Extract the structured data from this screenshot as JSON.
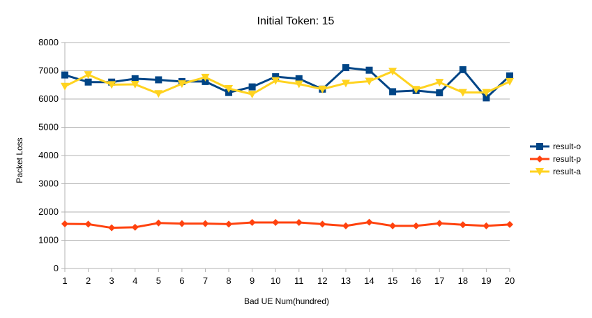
{
  "chart_data": {
    "type": "line",
    "title": "Initial Token: 15",
    "xlabel": "Bad UE Num(hundred)",
    "ylabel": "Packet Loss",
    "categories": [
      "1",
      "2",
      "3",
      "4",
      "5",
      "6",
      "7",
      "8",
      "9",
      "10",
      "11",
      "12",
      "13",
      "14",
      "15",
      "16",
      "17",
      "18",
      "19",
      "20"
    ],
    "ylim": [
      0,
      8000
    ],
    "yticks": [
      "0",
      "1000",
      "2000",
      "3000",
      "4000",
      "5000",
      "6000",
      "7000",
      "8000"
    ],
    "grid": true,
    "legend_position": "right",
    "series": [
      {
        "name": "result-o",
        "color": "#004586",
        "marker": "square",
        "values": [
          6850,
          6600,
          6600,
          6720,
          6680,
          6620,
          6620,
          6230,
          6430,
          6790,
          6720,
          6350,
          7110,
          7020,
          6260,
          6300,
          6220,
          7040,
          6040,
          6820
        ]
      },
      {
        "name": "result-p",
        "color": "#ff420e",
        "marker": "diamond",
        "values": [
          1580,
          1570,
          1440,
          1460,
          1610,
          1590,
          1590,
          1570,
          1630,
          1630,
          1630,
          1570,
          1510,
          1640,
          1510,
          1510,
          1600,
          1550,
          1510,
          1560
        ]
      },
      {
        "name": "result-a",
        "color": "#ffd320",
        "marker": "triangle-down",
        "values": [
          6450,
          6860,
          6510,
          6520,
          6190,
          6540,
          6770,
          6370,
          6170,
          6650,
          6530,
          6350,
          6560,
          6630,
          6980,
          6340,
          6590,
          6230,
          6230,
          6620
        ]
      }
    ]
  }
}
